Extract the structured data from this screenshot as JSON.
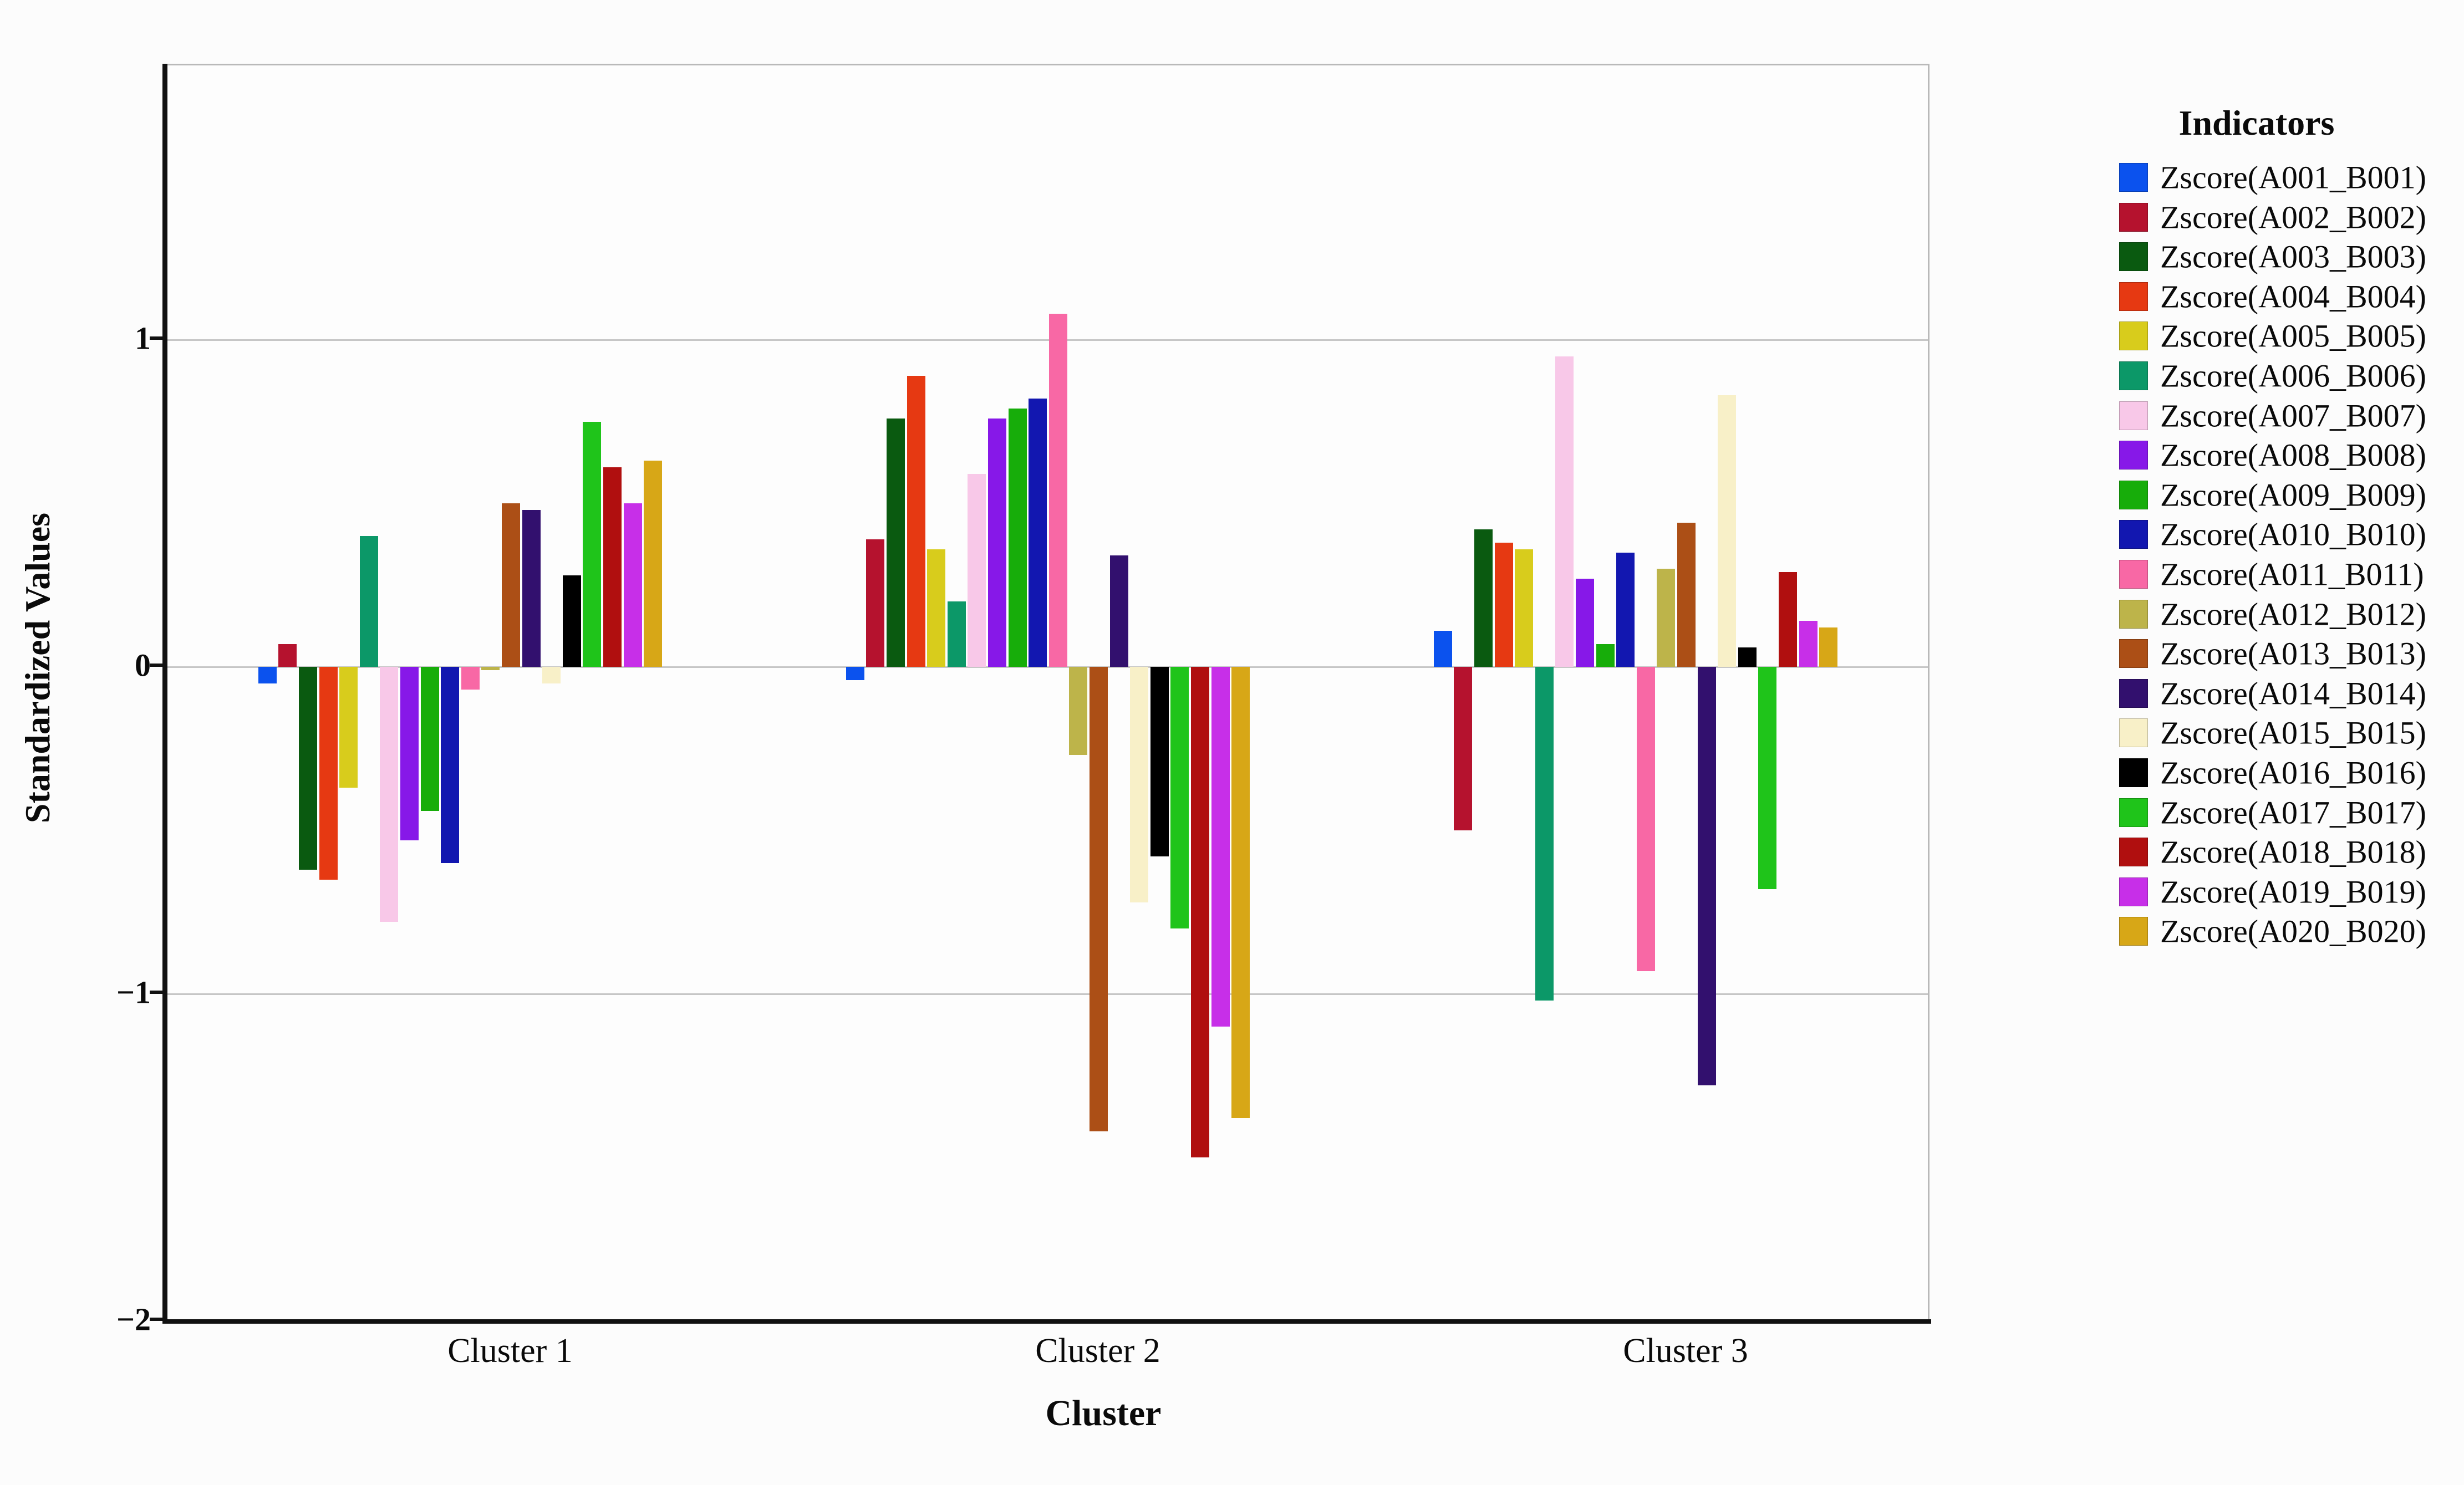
{
  "page": {
    "background": "#fcfcfc"
  },
  "chart_data": {
    "type": "bar",
    "title": "",
    "xlabel": "Cluster",
    "ylabel": "Standardized Values",
    "legend_title": "Indicators",
    "legend_position": "right",
    "grid_on": true,
    "categories": [
      "Cluster 1",
      "Cluster 2",
      "Cluster 3"
    ],
    "y_ticks": [
      "1",
      "0",
      "−1",
      "−2"
    ],
    "y_tick_values": [
      1,
      0,
      -1,
      -2
    ],
    "grid_values": [
      1,
      0,
      -1
    ],
    "ylim": [
      -2,
      1.84
    ],
    "series": [
      {
        "name": "Zscore(A001_B001)",
        "color": "#0B52EE",
        "values": [
          -0.05,
          -0.04,
          0.11
        ]
      },
      {
        "name": "Zscore(A002_B002)",
        "color": "#B5122E",
        "values": [
          0.07,
          0.39,
          -0.5
        ]
      },
      {
        "name": "Zscore(A003_B003)",
        "color": "#0A5A10",
        "values": [
          -0.62,
          0.76,
          0.42
        ]
      },
      {
        "name": "Zscore(A004_B004)",
        "color": "#E63912",
        "values": [
          -0.65,
          0.89,
          0.38
        ]
      },
      {
        "name": "Zscore(A005_B005)",
        "color": "#D8CC1C",
        "values": [
          -0.37,
          0.36,
          0.36
        ]
      },
      {
        "name": "Zscore(A006_B006)",
        "color": "#0C9868",
        "values": [
          0.4,
          0.2,
          -1.02
        ]
      },
      {
        "name": "Zscore(A007_B007)",
        "color": "#F8C8E8",
        "values": [
          -0.78,
          0.59,
          0.95
        ]
      },
      {
        "name": "Zscore(A008_B008)",
        "color": "#8718E8",
        "values": [
          -0.53,
          0.76,
          0.27
        ]
      },
      {
        "name": "Zscore(A009_B009)",
        "color": "#17AD0A",
        "values": [
          -0.44,
          0.79,
          0.07
        ]
      },
      {
        "name": "Zscore(A010_B010)",
        "color": "#1217B0",
        "values": [
          -0.6,
          0.82,
          0.35
        ]
      },
      {
        "name": "Zscore(A011_B011)",
        "color": "#F868A5",
        "values": [
          -0.07,
          1.08,
          -0.93
        ]
      },
      {
        "name": "Zscore(A012_B012)",
        "color": "#BDB44A",
        "values": [
          -0.01,
          -0.27,
          0.3
        ]
      },
      {
        "name": "Zscore(A013_B013)",
        "color": "#AC4F16",
        "values": [
          0.5,
          -1.42,
          0.44
        ]
      },
      {
        "name": "Zscore(A014_B014)",
        "color": "#32106E",
        "values": [
          0.48,
          0.34,
          -1.28
        ]
      },
      {
        "name": "Zscore(A015_B015)",
        "color": "#F8F0C8",
        "values": [
          -0.05,
          -0.72,
          0.83
        ]
      },
      {
        "name": "Zscore(A016_B016)",
        "color": "#000000",
        "values": [
          0.28,
          -0.58,
          0.06
        ]
      },
      {
        "name": "Zscore(A017_B017)",
        "color": "#1FC41A",
        "values": [
          0.75,
          -0.8,
          -0.68
        ]
      },
      {
        "name": "Zscore(A018_B018)",
        "color": "#B00F0F",
        "values": [
          0.61,
          -1.5,
          0.29
        ]
      },
      {
        "name": "Zscore(A019_B019)",
        "color": "#C72FE8",
        "values": [
          0.5,
          -1.1,
          0.14
        ]
      },
      {
        "name": "Zscore(A020_B020)",
        "color": "#D7A717",
        "values": [
          0.63,
          -1.38,
          0.12
        ]
      }
    ]
  }
}
